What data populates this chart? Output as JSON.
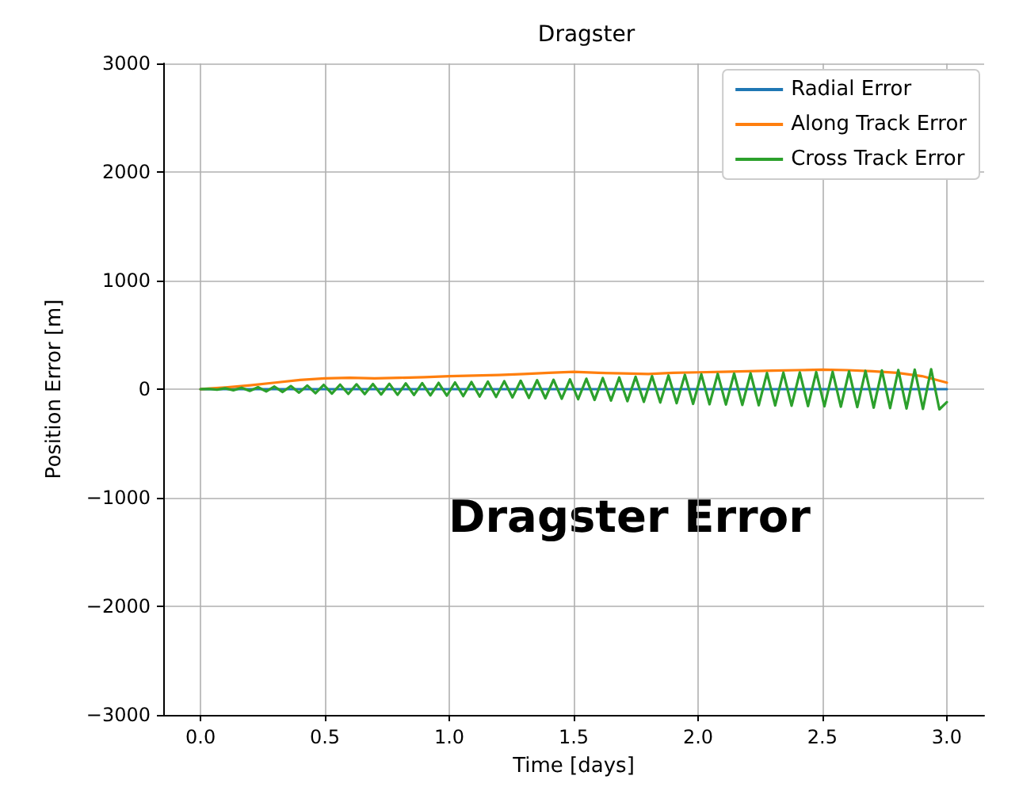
{
  "chart_data": {
    "type": "line",
    "title": "Dragster",
    "xlabel": "Time [days]",
    "ylabel": "Position Error [m]",
    "annotations": [
      "Dragster Error"
    ],
    "xlim": [
      -0.15,
      3.15
    ],
    "ylim": [
      -3000,
      3000
    ],
    "xticks": [
      {
        "value": 0,
        "label": "0.0"
      },
      {
        "value": 0.5,
        "label": "0.5"
      },
      {
        "value": 1,
        "label": "1.0"
      },
      {
        "value": 1.5,
        "label": "1.5"
      },
      {
        "value": 2,
        "label": "2.0"
      },
      {
        "value": 2.5,
        "label": "2.5"
      },
      {
        "value": 3,
        "label": "3.0"
      }
    ],
    "yticks": [
      {
        "value": -3000,
        "label": "−3000"
      },
      {
        "value": -2000,
        "label": "−2000"
      },
      {
        "value": -1000,
        "label": "−1000"
      },
      0,
      1000,
      2000,
      3000
    ],
    "grid": true,
    "legend": "top right",
    "marker": "none",
    "line_style": "solid",
    "series": [
      {
        "name": "Radial Error",
        "color": "#1f77b4",
        "x": [
          0,
          1,
          2,
          3
        ],
        "values": [
          0,
          0,
          0,
          0
        ]
      },
      {
        "name": "Along Track Error",
        "color": "#ff7f0e",
        "x": [
          0,
          0.1,
          0.2,
          0.3,
          0.4,
          0.5,
          0.6,
          0.7,
          0.8,
          0.9,
          1.0,
          1.1,
          1.2,
          1.3,
          1.4,
          1.5,
          1.6,
          1.7,
          1.8,
          1.9,
          2.0,
          2.1,
          2.2,
          2.3,
          2.4,
          2.5,
          2.6,
          2.7,
          2.8,
          2.9,
          3.0
        ],
        "values": [
          0,
          15,
          35,
          60,
          85,
          100,
          105,
          100,
          105,
          110,
          120,
          125,
          130,
          140,
          150,
          160,
          150,
          145,
          140,
          150,
          155,
          160,
          165,
          170,
          175,
          180,
          175,
          165,
          150,
          120,
          60
        ]
      },
      {
        "name": "Cross Track Error",
        "color": "#2ca02c",
        "x": [
          0,
          0.033,
          0.066,
          0.099,
          0.132,
          0.165,
          0.198,
          0.231,
          0.264,
          0.297,
          0.33,
          0.363,
          0.396,
          0.429,
          0.462,
          0.495,
          0.528,
          0.561,
          0.594,
          0.627,
          0.66,
          0.693,
          0.726,
          0.759,
          0.792,
          0.825,
          0.858,
          0.891,
          0.924,
          0.957,
          0.99,
          1.023,
          1.056,
          1.089,
          1.122,
          1.155,
          1.188,
          1.221,
          1.254,
          1.287,
          1.32,
          1.353,
          1.386,
          1.419,
          1.452,
          1.485,
          1.518,
          1.551,
          1.584,
          1.617,
          1.65,
          1.683,
          1.716,
          1.749,
          1.782,
          1.815,
          1.848,
          1.881,
          1.914,
          1.947,
          1.98,
          2.013,
          2.046,
          2.079,
          2.112,
          2.145,
          2.178,
          2.211,
          2.244,
          2.277,
          2.31,
          2.343,
          2.376,
          2.409,
          2.442,
          2.475,
          2.508,
          2.541,
          2.574,
          2.607,
          2.64,
          2.673,
          2.706,
          2.739,
          2.772,
          2.805,
          2.838,
          2.871,
          2.904,
          2.937,
          2.97,
          3.0
        ],
        "values": [
          0,
          3,
          -5,
          8,
          -10,
          13,
          -16,
          18,
          -21,
          24,
          -26,
          29,
          -32,
          34,
          -37,
          40,
          -41,
          42,
          -44,
          45,
          -46,
          48,
          -49,
          50,
          -52,
          53,
          -54,
          56,
          -57,
          58,
          -60,
          62,
          -64,
          66,
          -68,
          70,
          -72,
          74,
          -76,
          78,
          -80,
          82,
          -84,
          86,
          -88,
          90,
          -93,
          96,
          -99,
          102,
          -105,
          108,
          -111,
          114,
          -117,
          120,
          -123,
          126,
          -129,
          132,
          -135,
          138,
          -139,
          141,
          -142,
          144,
          -145,
          146,
          -148,
          149,
          -150,
          152,
          -153,
          154,
          -156,
          157,
          -158,
          160,
          -162,
          164,
          -166,
          168,
          -170,
          172,
          -174,
          176,
          -178,
          180,
          -182,
          184,
          -186,
          -120
        ]
      }
    ]
  }
}
